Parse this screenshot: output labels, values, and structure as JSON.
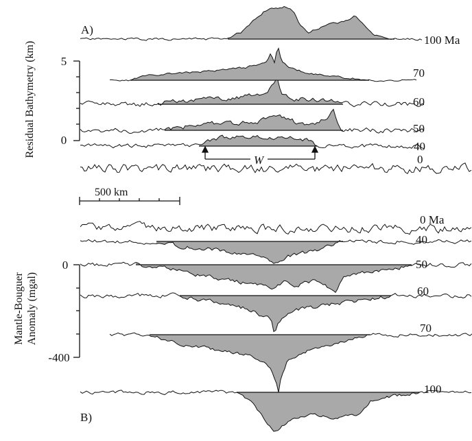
{
  "chart_data": [
    {
      "type": "area",
      "panel_label": "A)",
      "ylabel": "Residual Bathymetry (km)",
      "y_ticks": [
        "5",
        "0"
      ],
      "profile_unit": "Ma",
      "annotation": "W",
      "profiles": [
        {
          "label": "100 Ma"
        },
        {
          "label": "70"
        },
        {
          "label": "60"
        },
        {
          "label": "50"
        },
        {
          "label": "40"
        },
        {
          "label": "0"
        }
      ]
    },
    {
      "type": "area",
      "panel_label": "B)",
      "ylabel": "Mantle-Bouguer Anomaly (mgal)",
      "y_ticks": [
        "0",
        "-400"
      ],
      "profile_unit": "Ma",
      "profiles": [
        {
          "label": "0 Ma"
        },
        {
          "label": "40"
        },
        {
          "label": "50"
        },
        {
          "label": "60"
        },
        {
          "label": "70"
        },
        {
          "label": "100"
        }
      ]
    }
  ],
  "scale_bar": {
    "label": "500 km",
    "length_km": 500
  },
  "colors": {
    "line": "#111111",
    "fill": "#a9a9a9",
    "background": "#ffffff"
  }
}
